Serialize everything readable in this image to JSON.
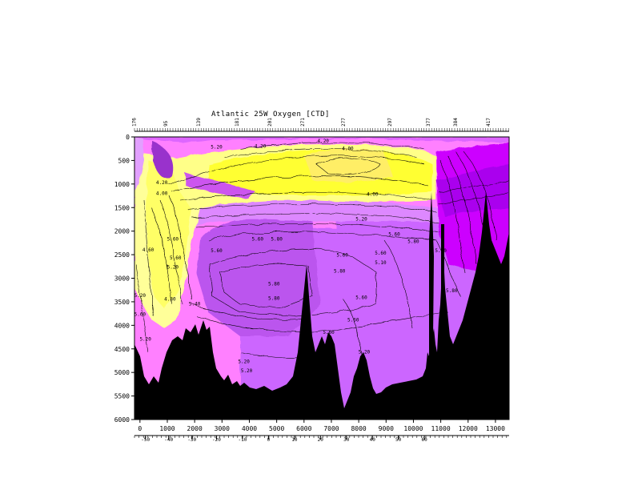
{
  "chart_data": {
    "type": "contour",
    "title": "Atlantic 25W Oxygen [CTD]",
    "y_axis": {
      "ticks": [
        0,
        500,
        1000,
        1500,
        2000,
        2500,
        3000,
        3500,
        4000,
        4500,
        5000,
        5500,
        6000
      ],
      "range": [
        0,
        6000
      ],
      "reversed": true
    },
    "x_axis": {
      "ticks": [
        0,
        1000,
        2000,
        3000,
        4000,
        5000,
        6000,
        7000,
        8000,
        9000,
        10000,
        11000,
        12000,
        13000
      ],
      "range": [
        -200,
        13500
      ]
    },
    "lat_axis": {
      "ticks": [
        "-50",
        "-40",
        "-30",
        "-20",
        "-10",
        "0",
        "10",
        "20",
        "30",
        "40",
        "50",
        "60"
      ],
      "tick_km": [
        200,
        1050,
        1900,
        2800,
        3750,
        4700,
        5650,
        6600,
        7550,
        8500,
        9450,
        10400
      ]
    },
    "station_labels": [
      "176",
      "95",
      "139",
      "181",
      "201",
      "271",
      "277",
      "297",
      "377",
      "384",
      "417"
    ],
    "station_km": [
      -150,
      1000,
      2200,
      3600,
      4800,
      6000,
      7500,
      9200,
      10600,
      11600,
      12800
    ],
    "contour_labels": [
      {
        "text": "5.20",
        "km": 2800,
        "depth": 250
      },
      {
        "text": "4.20",
        "km": 4400,
        "depth": 230
      },
      {
        "text": "4.20",
        "km": 6700,
        "depth": 120
      },
      {
        "text": "4.00",
        "km": 7600,
        "depth": 280
      },
      {
        "text": "4.20",
        "km": 800,
        "depth": 1000
      },
      {
        "text": "4.00",
        "km": 800,
        "depth": 1230
      },
      {
        "text": "4.00",
        "km": 8500,
        "depth": 1250
      },
      {
        "text": "5.20",
        "km": 8100,
        "depth": 1780
      },
      {
        "text": "5.60",
        "km": 1200,
        "depth": 2200
      },
      {
        "text": "4.60",
        "km": 300,
        "depth": 2430
      },
      {
        "text": "5.60",
        "km": 4300,
        "depth": 2200
      },
      {
        "text": "5.80",
        "km": 5000,
        "depth": 2200
      },
      {
        "text": "5.60",
        "km": 9300,
        "depth": 2100
      },
      {
        "text": "5.80",
        "km": 10000,
        "depth": 2250
      },
      {
        "text": "5.60",
        "km": 1300,
        "depth": 2600
      },
      {
        "text": "5.20",
        "km": 1200,
        "depth": 2800
      },
      {
        "text": "5.60",
        "km": 2800,
        "depth": 2450
      },
      {
        "text": "5.60",
        "km": 7400,
        "depth": 2540
      },
      {
        "text": "5.60",
        "km": 8800,
        "depth": 2500
      },
      {
        "text": "5.60",
        "km": 11000,
        "depth": 2450
      },
      {
        "text": "5.10",
        "km": 8800,
        "depth": 2700
      },
      {
        "text": "5.80",
        "km": 7300,
        "depth": 2880
      },
      {
        "text": "5.80",
        "km": 4900,
        "depth": 3150
      },
      {
        "text": "5.80",
        "km": 4900,
        "depth": 3460
      },
      {
        "text": "4.80",
        "km": 1100,
        "depth": 3480
      },
      {
        "text": "5.40",
        "km": 2000,
        "depth": 3580
      },
      {
        "text": "5.20",
        "km": 0,
        "depth": 3400
      },
      {
        "text": "5.60",
        "km": 0,
        "depth": 3800
      },
      {
        "text": "5.60",
        "km": 8100,
        "depth": 3440
      },
      {
        "text": "5.80",
        "km": 11400,
        "depth": 3300
      },
      {
        "text": "5.60",
        "km": 7800,
        "depth": 3920
      },
      {
        "text": "5.60",
        "km": 6900,
        "depth": 4180
      },
      {
        "text": "5.20",
        "km": 200,
        "depth": 4330
      },
      {
        "text": "5.20",
        "km": 8200,
        "depth": 4600
      },
      {
        "text": "5.20",
        "km": 3800,
        "depth": 4800
      },
      {
        "text": "5.20",
        "km": 3900,
        "depth": 5000
      }
    ]
  }
}
